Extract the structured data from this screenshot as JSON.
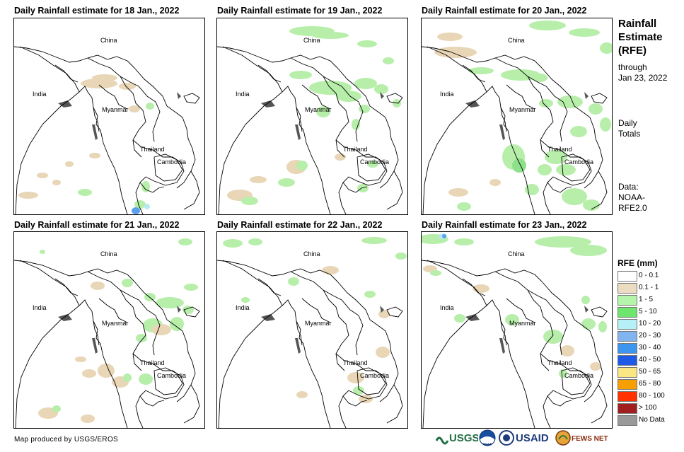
{
  "panels": [
    {
      "title": "Daily Rainfall estimate for 18 Jan., 2022"
    },
    {
      "title": "Daily Rainfall estimate for 19 Jan., 2022"
    },
    {
      "title": "Daily Rainfall estimate for 20 Jan., 2022"
    },
    {
      "title": "Daily Rainfall estimate for 21 Jan., 2022"
    },
    {
      "title": "Daily Rainfall estimate for 22 Jan., 2022"
    },
    {
      "title": "Daily Rainfall estimate for 23 Jan., 2022"
    }
  ],
  "map_labels": {
    "china": "China",
    "india": "India",
    "myanmar": "Myanmar",
    "thailand": "Thailand",
    "cambodia": "Cambodia"
  },
  "legend": {
    "title_line1": "Rainfall",
    "title_line2": "Estimate",
    "title_line3": "(RFE)",
    "through_line1": "through",
    "through_line2": "Jan 23, 2022",
    "daily_line1": "Daily",
    "daily_line2": "Totals",
    "data_line1": "Data:",
    "data_line2": "NOAA-",
    "data_line3": "RFE2.0",
    "scale_title": "RFE (mm)",
    "classes": [
      {
        "label": "0 - 0.1",
        "color": "#ffffff"
      },
      {
        "label": "0.1 - 1",
        "color": "#ecdcc1"
      },
      {
        "label": "1 - 5",
        "color": "#b4f5aa"
      },
      {
        "label": "5 - 10",
        "color": "#6ee66e"
      },
      {
        "label": "10 - 20",
        "color": "#b4f0f5"
      },
      {
        "label": "20 - 30",
        "color": "#82b4f0"
      },
      {
        "label": "30 - 40",
        "color": "#3c96f0"
      },
      {
        "label": "40 - 50",
        "color": "#1e5ae6"
      },
      {
        "label": "50 - 65",
        "color": "#fae682"
      },
      {
        "label": "65 - 80",
        "color": "#f5a000"
      },
      {
        "label": "80 - 100",
        "color": "#ff3200"
      },
      {
        "label": "> 100",
        "color": "#a01e1e"
      },
      {
        "label": "No Data",
        "color": "#999999"
      }
    ]
  },
  "credit": "Map produced by USGS/EROS",
  "logos": {
    "usgs": "USGS",
    "noaa": "NOAA",
    "usaid": "USAID",
    "fewsnet": "FEWS NET"
  },
  "colors": {
    "border": "#000000",
    "water": "#555555"
  }
}
